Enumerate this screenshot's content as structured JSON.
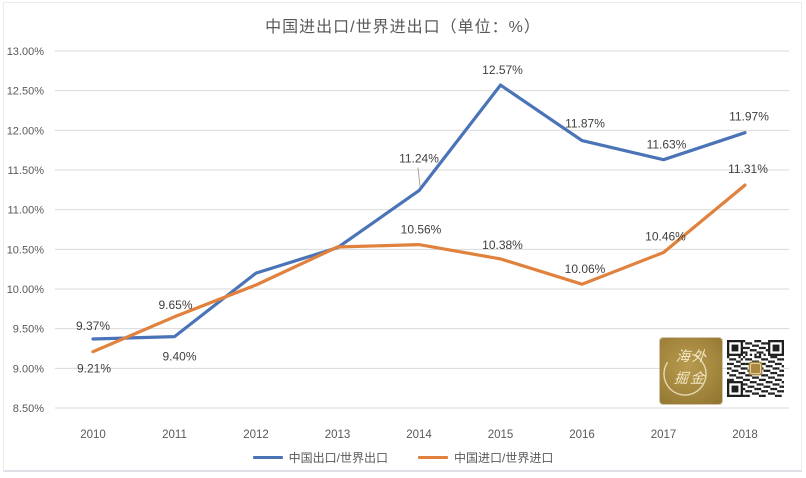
{
  "title": "中国进出口/世界进出口（单位：%）",
  "chart_data": {
    "type": "line",
    "x_categories": [
      "2010",
      "2011",
      "2012",
      "2013",
      "2014",
      "2015",
      "2016",
      "2017",
      "2018"
    ],
    "series": [
      {
        "name": "中国出口/世界出口",
        "color": "#4A73B8",
        "values": [
          9.37,
          9.4,
          10.2,
          10.52,
          11.24,
          12.57,
          11.87,
          11.63,
          11.97
        ],
        "point_labels": [
          "9.37%",
          "9.40%",
          "",
          "",
          "11.24%",
          "12.57%",
          "11.87%",
          "11.63%",
          "11.97%"
        ],
        "label_offsets": [
          [
            0,
            -9
          ],
          [
            5,
            24
          ],
          null,
          null,
          [
            0,
            -28
          ],
          [
            2,
            -11
          ],
          [
            3,
            -13
          ],
          [
            3,
            -11
          ],
          [
            4,
            -12
          ]
        ],
        "leader_at": 4
      },
      {
        "name": "中国进口/世界进口",
        "color": "#E0823E",
        "values": [
          9.21,
          9.65,
          10.05,
          10.53,
          10.56,
          10.38,
          10.06,
          10.46,
          11.31
        ],
        "point_labels": [
          "9.21%",
          "9.65%",
          "",
          "",
          "10.56%",
          "10.38%",
          "10.06%",
          "10.46%",
          "11.31%"
        ],
        "label_offsets": [
          [
            1,
            21
          ],
          [
            1,
            -8
          ],
          null,
          null,
          [
            2,
            -11
          ],
          [
            2,
            -10
          ],
          [
            3,
            -11
          ],
          [
            2,
            -12
          ],
          [
            3,
            -12
          ]
        ],
        "leader_at": null
      }
    ],
    "y_axis": {
      "min": 8.5,
      "max": 13.0,
      "step": 0.5,
      "tick_labels": [
        "13.00%",
        "12.50%",
        "12.00%",
        "11.50%",
        "11.00%",
        "10.50%",
        "10.00%",
        "9.50%",
        "9.00%",
        "8.50%"
      ]
    },
    "grid": "horizontal",
    "legend_position": "bottom"
  },
  "watermark": {
    "logo_line1": "海外",
    "logo_line2": "掘金",
    "gold": "#A8893F"
  },
  "colors": {
    "background": "#FFFFFF",
    "grid": "#D9D9D9",
    "axis_text": "#595959",
    "label_text": "#404040",
    "title_text": "#595959",
    "leader_line": "#A6A6A6",
    "qr_dark": "#1E1E1E"
  }
}
